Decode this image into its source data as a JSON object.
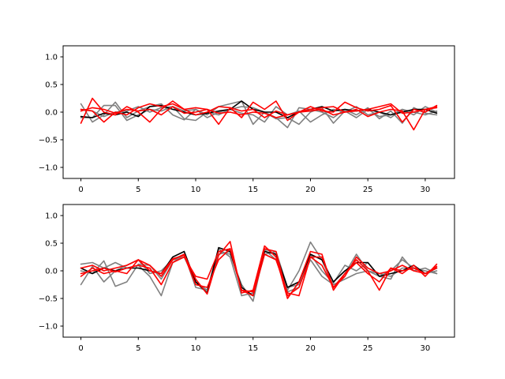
{
  "chart_data": [
    {
      "type": "line",
      "xlim": [
        -1.55,
        32.55
      ],
      "ylim": [
        -1.2,
        1.2
      ],
      "xticks": [
        0,
        5,
        10,
        15,
        20,
        25,
        30
      ],
      "yticks": [
        -1.0,
        -0.5,
        0.0,
        0.5,
        1.0
      ],
      "xtick_labels": [
        "0",
        "5",
        "10",
        "15",
        "20",
        "25",
        "30"
      ],
      "ytick_labels": [
        "−1.0",
        "−0.5",
        "0.0",
        "0.5",
        "1.0"
      ],
      "grid": false,
      "x": [
        0,
        1,
        2,
        3,
        4,
        5,
        6,
        7,
        8,
        9,
        10,
        11,
        12,
        13,
        14,
        15,
        16,
        17,
        18,
        19,
        20,
        21,
        22,
        23,
        24,
        25,
        26,
        27,
        28,
        29,
        30,
        31
      ],
      "series": [
        {
          "color": "#808080",
          "values": [
            0.15,
            -0.18,
            -0.05,
            0.18,
            -0.1,
            0.02,
            0.1,
            0.15,
            -0.05,
            -0.14,
            0.05,
            -0.05,
            0.1,
            0.15,
            0.2,
            -0.22,
            0.0,
            -0.1,
            -0.28,
            0.08,
            0.05,
            0.0,
            -0.1,
            0.05,
            -0.05,
            0.08,
            -0.12,
            0.02,
            -0.2,
            0.08,
            -0.02,
            -0.05
          ]
        },
        {
          "color": "#808080",
          "values": [
            -0.1,
            -0.1,
            0.12,
            0.12,
            -0.15,
            -0.05,
            0.05,
            0.02,
            0.1,
            -0.12,
            -0.15,
            0.0,
            -0.05,
            0.05,
            -0.02,
            -0.05,
            -0.18,
            0.1,
            -0.05,
            0.02,
            -0.18,
            -0.05,
            0.05,
            0.0,
            0.1,
            -0.05,
            0.0,
            -0.1,
            0.05,
            -0.05,
            0.1,
            0.0
          ]
        },
        {
          "color": "#808080",
          "values": [
            0.05,
            0.02,
            -0.08,
            0.0,
            0.02,
            0.1,
            0.0,
            0.08,
            0.1,
            0.02,
            0.05,
            -0.1,
            0.0,
            0.05,
            0.1,
            0.08,
            0.0,
            -0.12,
            -0.1,
            -0.22,
            0.0,
            0.08,
            -0.2,
            0.02,
            -0.1,
            0.05,
            -0.08,
            -0.05,
            0.05,
            0.0,
            -0.05,
            0.02
          ]
        },
        {
          "color": "#000000",
          "values": [
            -0.08,
            -0.1,
            -0.02,
            -0.05,
            0.0,
            -0.08,
            0.1,
            0.12,
            0.05,
            0.0,
            -0.05,
            -0.02,
            0.02,
            0.05,
            0.2,
            0.05,
            0.0,
            0.0,
            -0.1,
            0.0,
            0.05,
            0.1,
            0.02,
            0.05,
            0.02,
            0.05,
            0.0,
            -0.05,
            0.0,
            0.05,
            0.05,
            -0.02
          ]
        },
        {
          "color": "#ff0000",
          "values": [
            -0.2,
            0.25,
            0.0,
            -0.05,
            0.1,
            0.0,
            -0.18,
            0.05,
            0.2,
            0.05,
            0.08,
            0.05,
            -0.22,
            0.08,
            -0.1,
            0.18,
            0.05,
            0.2,
            -0.15,
            0.0,
            0.05,
            0.08,
            0.1,
            0.0,
            0.05,
            -0.08,
            0.0,
            0.05,
            0.02,
            -0.32,
            0.05,
            0.1
          ]
        },
        {
          "color": "#ff0000",
          "values": [
            0.05,
            0.02,
            -0.18,
            0.0,
            -0.05,
            0.08,
            0.15,
            0.1,
            0.15,
            0.05,
            -0.05,
            0.0,
            0.1,
            0.08,
            0.02,
            0.05,
            -0.1,
            0.02,
            -0.05,
            0.0,
            0.1,
            0.02,
            0.0,
            0.18,
            0.08,
            0.02,
            0.05,
            0.12,
            -0.18,
            0.05,
            0.0,
            0.12
          ]
        },
        {
          "color": "#ff0000",
          "values": [
            0.02,
            0.08,
            0.05,
            -0.02,
            0.05,
            0.02,
            0.05,
            -0.05,
            0.1,
            -0.02,
            0.0,
            0.05,
            -0.02,
            0.0,
            -0.05,
            0.0,
            -0.02,
            -0.1,
            -0.05,
            0.0,
            0.02,
            0.05,
            -0.05,
            0.0,
            0.02,
            0.05,
            0.1,
            0.15,
            -0.02,
            0.0,
            0.05,
            0.08
          ]
        }
      ]
    },
    {
      "type": "line",
      "xlim": [
        -1.55,
        32.55
      ],
      "ylim": [
        -1.2,
        1.2
      ],
      "xticks": [
        0,
        5,
        10,
        15,
        20,
        25,
        30
      ],
      "yticks": [
        -1.0,
        -0.5,
        0.0,
        0.5,
        1.0
      ],
      "xtick_labels": [
        "0",
        "5",
        "10",
        "15",
        "20",
        "25",
        "30"
      ],
      "ytick_labels": [
        "−1.0",
        "−0.5",
        "0.0",
        "0.5",
        "1.0"
      ],
      "grid": false,
      "x": [
        0,
        1,
        2,
        3,
        4,
        5,
        6,
        7,
        8,
        9,
        10,
        11,
        12,
        13,
        14,
        15,
        16,
        17,
        18,
        19,
        20,
        21,
        22,
        23,
        24,
        25,
        26,
        27,
        28,
        29,
        30,
        31
      ],
      "series": [
        {
          "color": "#808080",
          "values": [
            0.12,
            0.15,
            0.05,
            0.15,
            0.05,
            0.1,
            -0.1,
            -0.45,
            0.15,
            0.3,
            -0.2,
            -0.35,
            0.35,
            0.3,
            -0.25,
            -0.55,
            0.38,
            0.2,
            -0.35,
            0.0,
            0.52,
            0.2,
            -0.3,
            -0.05,
            0.3,
            0.0,
            -0.1,
            0.0,
            0.2,
            0.05,
            -0.05,
            0.0
          ]
        },
        {
          "color": "#808080",
          "values": [
            -0.25,
            0.08,
            -0.2,
            0.0,
            0.1,
            0.2,
            -0.05,
            0.0,
            0.2,
            0.3,
            -0.3,
            -0.35,
            0.4,
            0.25,
            -0.45,
            -0.4,
            0.4,
            0.3,
            -0.38,
            -0.3,
            0.3,
            0.0,
            -0.22,
            0.1,
            0.0,
            0.15,
            -0.1,
            -0.15,
            0.25,
            0.0,
            0.05,
            -0.05
          ]
        },
        {
          "color": "#808080",
          "values": [
            0.0,
            -0.05,
            0.18,
            -0.28,
            -0.2,
            0.12,
            0.1,
            -0.15,
            0.2,
            0.25,
            -0.2,
            -0.4,
            0.3,
            0.35,
            -0.35,
            -0.45,
            0.3,
            0.35,
            -0.3,
            -0.25,
            0.2,
            -0.1,
            -0.25,
            -0.15,
            -0.05,
            0.0,
            -0.05,
            -0.1,
            0.05,
            0.05,
            0.0,
            -0.05
          ]
        },
        {
          "color": "#000000",
          "values": [
            0.05,
            -0.05,
            0.05,
            0.0,
            0.05,
            0.05,
            0.0,
            -0.05,
            0.25,
            0.35,
            -0.2,
            -0.4,
            0.42,
            0.35,
            -0.3,
            -0.45,
            0.35,
            0.3,
            -0.3,
            -0.2,
            0.3,
            0.2,
            -0.2,
            0.0,
            0.15,
            0.15,
            -0.1,
            -0.05,
            0.0,
            0.1,
            -0.05,
            0.05
          ]
        },
        {
          "color": "#ff0000",
          "values": [
            0.05,
            0.1,
            0.0,
            0.05,
            0.1,
            0.2,
            0.1,
            -0.1,
            0.2,
            0.3,
            -0.15,
            -0.42,
            0.28,
            0.53,
            -0.4,
            -0.35,
            0.45,
            0.25,
            -0.5,
            -0.2,
            0.35,
            0.3,
            -0.35,
            -0.05,
            0.2,
            0.0,
            -0.35,
            0.05,
            -0.05,
            0.1,
            -0.1,
            0.12
          ]
        },
        {
          "color": "#ff0000",
          "values": [
            -0.05,
            0.0,
            0.05,
            -0.02,
            0.05,
            0.1,
            0.05,
            -0.25,
            0.15,
            0.25,
            -0.1,
            -0.15,
            0.35,
            0.4,
            -0.35,
            -0.45,
            0.3,
            0.2,
            -0.4,
            -0.45,
            0.25,
            0.25,
            -0.3,
            -0.1,
            0.25,
            0.05,
            -0.05,
            0.0,
            0.1,
            0.0,
            -0.05,
            0.08
          ]
        },
        {
          "color": "#ff0000",
          "values": [
            -0.1,
            0.05,
            -0.05,
            0.0,
            -0.05,
            0.2,
            0.0,
            -0.05,
            0.22,
            0.28,
            -0.25,
            -0.3,
            0.2,
            0.4,
            -0.35,
            -0.38,
            0.4,
            0.35,
            -0.45,
            -0.3,
            0.25,
            0.1,
            -0.3,
            -0.05,
            0.15,
            -0.05,
            -0.2,
            0.05,
            0.0,
            0.05,
            -0.05,
            0.05
          ]
        }
      ]
    }
  ]
}
